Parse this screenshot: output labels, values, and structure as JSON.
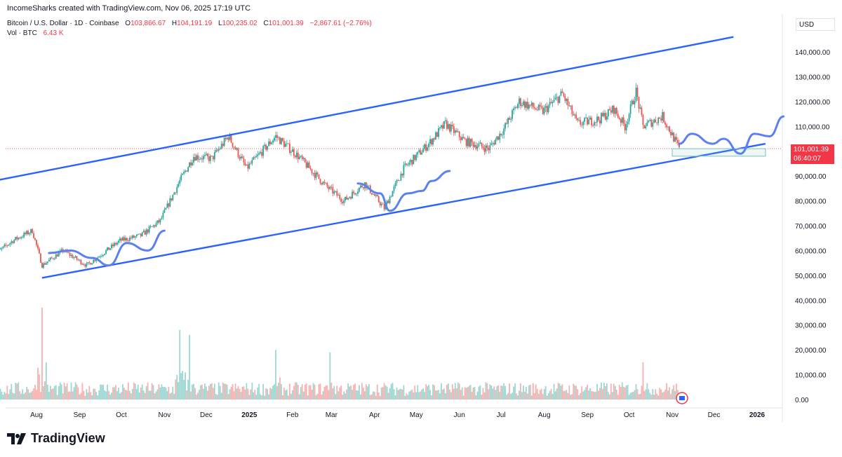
{
  "header": {
    "attribution": "IncomeSharks created with TradingView.com, Nov 06, 2025 17:19 UTC"
  },
  "legend": {
    "symbol": "Bitcoin / U.S. Dollar · 1D · Coinbase",
    "open_label": "O",
    "open": "103,866.67",
    "high_label": "H",
    "high": "104,191.19",
    "low_label": "L",
    "low": "100,235.02",
    "close_label": "C",
    "close": "101,001.39",
    "change": "−2,867.61 (−2.76%)",
    "volume_label": "Vol · BTC",
    "volume": "6.43 K"
  },
  "price_scale": {
    "currency": "USD",
    "last_price": "101,001.39",
    "countdown": "06:40:07"
  },
  "brand": {
    "name": "TradingView"
  },
  "colors": {
    "up": "#26a69a",
    "down": "#ef5350",
    "line": "#2962ff",
    "projection": "#5b80f0",
    "box": "#8ecbc4"
  },
  "chart_data": {
    "type": "candlestick",
    "price_ylim": [
      0,
      150000
    ],
    "volume_ylim": [
      0,
      40000
    ],
    "y_ticks": [
      "0.00",
      "10,000.00",
      "20,000.00",
      "30,000.00",
      "40,000.00",
      "50,000.00",
      "60,000.00",
      "70,000.00",
      "80,000.00",
      "90,000.00",
      "100,000.00",
      "110,000.00",
      "120,000.00",
      "130,000.00",
      "140,000.00"
    ],
    "x_ticks": [
      {
        "label": "Aug",
        "date": "2024-08-01"
      },
      {
        "label": "Sep",
        "date": "2024-09-01"
      },
      {
        "label": "Oct",
        "date": "2024-10-01"
      },
      {
        "label": "Nov",
        "date": "2024-11-01"
      },
      {
        "label": "Dec",
        "date": "2024-12-01"
      },
      {
        "label": "2025",
        "date": "2025-01-01"
      },
      {
        "label": "Feb",
        "date": "2025-02-01"
      },
      {
        "label": "Mar",
        "date": "2025-03-01"
      },
      {
        "label": "Apr",
        "date": "2025-04-01"
      },
      {
        "label": "May",
        "date": "2025-05-01"
      },
      {
        "label": "Jun",
        "date": "2025-06-01"
      },
      {
        "label": "Jul",
        "date": "2025-07-01"
      },
      {
        "label": "Aug",
        "date": "2025-08-01"
      },
      {
        "label": "Sep",
        "date": "2025-09-01"
      },
      {
        "label": "Oct",
        "date": "2025-10-01"
      },
      {
        "label": "Nov",
        "date": "2025-11-01"
      },
      {
        "label": "Dec",
        "date": "2025-12-01"
      },
      {
        "label": "2026",
        "date": "2026-01-01"
      }
    ],
    "price_path": [
      [
        "2024-07-01",
        58000
      ],
      [
        "2024-07-15",
        64000
      ],
      [
        "2024-07-29",
        68000
      ],
      [
        "2024-08-05",
        54000
      ],
      [
        "2024-08-20",
        60000
      ],
      [
        "2024-09-06",
        54000
      ],
      [
        "2024-09-30",
        64000
      ],
      [
        "2024-10-15",
        66000
      ],
      [
        "2024-10-29",
        72000
      ],
      [
        "2024-11-12",
        88000
      ],
      [
        "2024-11-22",
        98000
      ],
      [
        "2024-12-05",
        97000
      ],
      [
        "2024-12-17",
        106000
      ],
      [
        "2024-12-30",
        93000
      ],
      [
        "2025-01-20",
        106000
      ],
      [
        "2025-02-05",
        98000
      ],
      [
        "2025-02-25",
        86000
      ],
      [
        "2025-03-10",
        80000
      ],
      [
        "2025-03-25",
        87000
      ],
      [
        "2025-04-08",
        77000
      ],
      [
        "2025-04-22",
        93000
      ],
      [
        "2025-05-10",
        103000
      ],
      [
        "2025-05-22",
        111000
      ],
      [
        "2025-06-05",
        104000
      ],
      [
        "2025-06-22",
        101000
      ],
      [
        "2025-07-03",
        109000
      ],
      [
        "2025-07-14",
        120000
      ],
      [
        "2025-07-31",
        116000
      ],
      [
        "2025-08-14",
        123000
      ],
      [
        "2025-08-25",
        111000
      ],
      [
        "2025-09-10",
        113000
      ],
      [
        "2025-09-20",
        117000
      ],
      [
        "2025-09-28",
        110000
      ],
      [
        "2025-10-06",
        124000
      ],
      [
        "2025-10-11",
        110000
      ],
      [
        "2025-10-25",
        114000
      ],
      [
        "2025-11-06",
        101000
      ]
    ],
    "volume_spikes": [
      [
        "2024-08-05",
        37000
      ],
      [
        "2024-11-12",
        28000
      ],
      [
        "2024-11-19",
        26000
      ],
      [
        "2025-01-20",
        20000
      ],
      [
        "2025-02-28",
        19000
      ],
      [
        "2025-10-11",
        15000
      ]
    ],
    "drawings": {
      "channel_upper": [
        [
          "2024-07-01",
          88000
        ],
        [
          "2025-12-15",
          146000
        ]
      ],
      "channel_lower": [
        [
          "2024-08-05",
          49000
        ],
        [
          "2026-01-07",
          103000
        ]
      ],
      "support_zone": {
        "from": "2025-11-01",
        "to": "2026-01-07",
        "low": 98000,
        "high": 101000
      },
      "projections": [
        [
          [
            "2024-08-10",
            59000
          ],
          [
            "2024-08-25",
            60000
          ],
          [
            "2024-09-10",
            57000
          ],
          [
            "2024-09-22",
            54000
          ],
          [
            "2024-10-05",
            63000
          ],
          [
            "2024-10-20",
            60000
          ],
          [
            "2024-11-01",
            68000
          ]
        ],
        [
          [
            "2025-03-20",
            87000
          ],
          [
            "2025-04-05",
            83000
          ],
          [
            "2025-04-12",
            76000
          ],
          [
            "2025-04-25",
            83000
          ],
          [
            "2025-05-05",
            84000
          ],
          [
            "2025-05-12",
            88000
          ],
          [
            "2025-05-25",
            92000
          ]
        ],
        [
          [
            "2025-11-06",
            103000
          ],
          [
            "2025-11-15",
            107000
          ],
          [
            "2025-11-30",
            103000
          ],
          [
            "2025-12-08",
            105000
          ],
          [
            "2025-12-20",
            99000
          ],
          [
            "2025-12-30",
            107000
          ],
          [
            "2026-01-10",
            106000
          ],
          [
            "2026-01-20",
            114000
          ]
        ]
      ]
    }
  }
}
